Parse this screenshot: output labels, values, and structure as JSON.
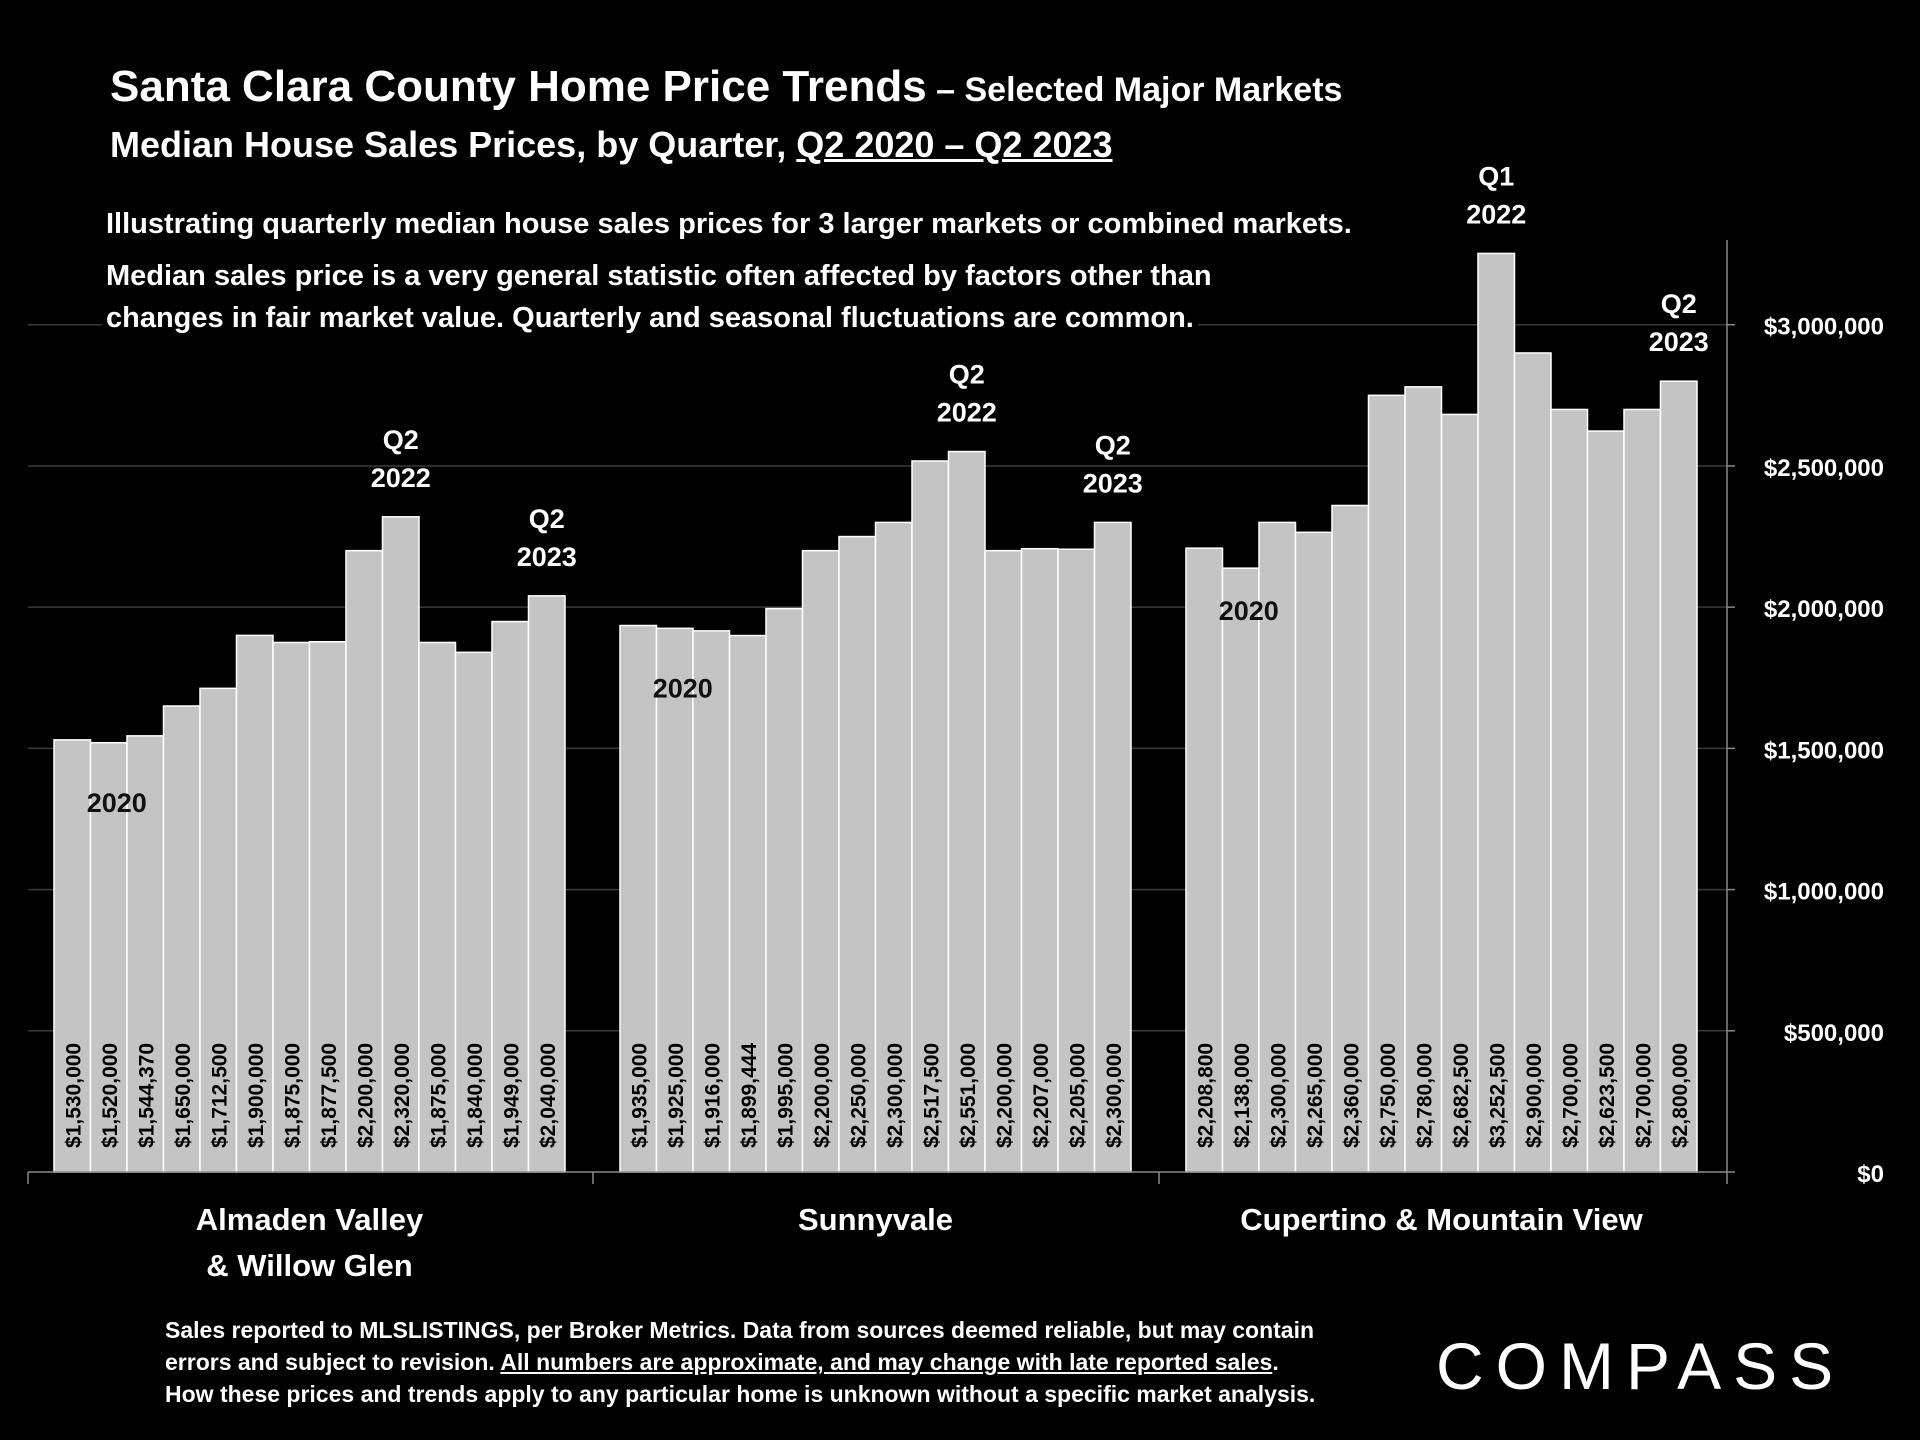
{
  "header": {
    "title_main": "Santa Clara County Home Price Trends",
    "title_sub": " – Selected Major Markets",
    "subtitle_prefix": "Median House Sales Prices, by Quarter, ",
    "subtitle_range": "Q2 2020 – Q2 2023"
  },
  "description": {
    "line1": "Illustrating quarterly median house sales prices for 3 larger markets or combined markets.",
    "line2": "Median sales price is a very general statistic often affected by factors other than",
    "line3": "changes in fair market value. Quarterly and seasonal fluctuations are common."
  },
  "chart_data": {
    "type": "bar",
    "title": "Median House Sales Prices, by Quarter, Q2 2020 – Q2 2023",
    "ylim": [
      0,
      3300000
    ],
    "y_ticks": [
      0,
      500000,
      1000000,
      1500000,
      2000000,
      2500000,
      3000000
    ],
    "y_tick_labels": [
      "$0",
      "$500,000",
      "$1,000,000",
      "$1,500,000",
      "$2,000,000",
      "$2,500,000",
      "$3,000,000"
    ],
    "y_axis_side": "right",
    "grid": true,
    "groups": [
      {
        "name": "Almaden Valley\n& Willow Glen",
        "values": [
          1530000,
          1520000,
          1544370,
          1650000,
          1712500,
          1900000,
          1875000,
          1877500,
          2200000,
          2320000,
          1875000,
          1840000,
          1949000,
          2040000
        ],
        "value_labels": [
          "$1,530,000",
          "$1,520,000",
          "$1,544,370",
          "$1,650,000",
          "$1,712,500",
          "$1,900,000",
          "$1,875,000",
          "$1,877,500",
          "$2,200,000",
          "$2,320,000",
          "$1,875,000",
          "$1,840,000",
          "$1,949,000",
          "$2,040,000"
        ],
        "annotations": [
          {
            "bar_index": 1,
            "text": "2020",
            "position": "inside"
          },
          {
            "bar_index": 9,
            "text": "Q2\n2022",
            "position": "above"
          },
          {
            "bar_index": 13,
            "text": "Q2\n2023",
            "position": "above"
          }
        ]
      },
      {
        "name": "Sunnyvale",
        "values": [
          1935000,
          1925000,
          1916000,
          1899444,
          1995000,
          2200000,
          2250000,
          2300000,
          2517500,
          2551000,
          2200000,
          2207000,
          2205000,
          2300000
        ],
        "value_labels": [
          "$1,935,000",
          "$1,925,000",
          "$1,916,000",
          "$1,899,444",
          "$1,995,000",
          "$2,200,000",
          "$2,250,000",
          "$2,300,000",
          "$2,517,500",
          "$2,551,000",
          "$2,200,000",
          "$2,207,000",
          "$2,205,000",
          "$2,300,000"
        ],
        "annotations": [
          {
            "bar_index": 1,
            "text": "2020",
            "position": "inside"
          },
          {
            "bar_index": 9,
            "text": "Q2\n2022",
            "position": "above"
          },
          {
            "bar_index": 13,
            "text": "Q2\n2023",
            "position": "above"
          }
        ]
      },
      {
        "name": "Cupertino & Mountain View",
        "values": [
          2208800,
          2138000,
          2300000,
          2265000,
          2360000,
          2750000,
          2780000,
          2682500,
          3252500,
          2900000,
          2700000,
          2623500,
          2700000,
          2800000
        ],
        "value_labels": [
          "$2,208,800",
          "$2,138,000",
          "$2,300,000",
          "$2,265,000",
          "$2,360,000",
          "$2,750,000",
          "$2,780,000",
          "$2,682,500",
          "$3,252,500",
          "$2,900,000",
          "$2,700,000",
          "$2,623,500",
          "$2,700,000",
          "$2,800,000"
        ],
        "annotations": [
          {
            "bar_index": 1,
            "text": "2020",
            "position": "inside"
          },
          {
            "bar_index": 8,
            "text": "Q1\n2022",
            "position": "above"
          },
          {
            "bar_index": 13,
            "text": "Q2\n2023",
            "position": "above"
          }
        ]
      }
    ]
  },
  "footer": {
    "note_line1": "Sales reported to MLSLISTINGS, per Broker Metrics. Data from sources deemed reliable, but may contain",
    "note_line2_prefix": "errors and subject to revision. ",
    "note_line2_underlined": "All numbers are approximate, and may change with late reported sales",
    "note_line2_suffix": ".",
    "note_line3": "How these prices and trends apply to any particular home is unknown without a specific market analysis.",
    "logo": "COMPASS"
  },
  "colors": {
    "background": "#000000",
    "bar_fill": "#c4c4c4",
    "bar_stroke": "#ffffff",
    "grid": "#3a3a3a",
    "text": "#ffffff",
    "bar_label_text": "#000000"
  }
}
